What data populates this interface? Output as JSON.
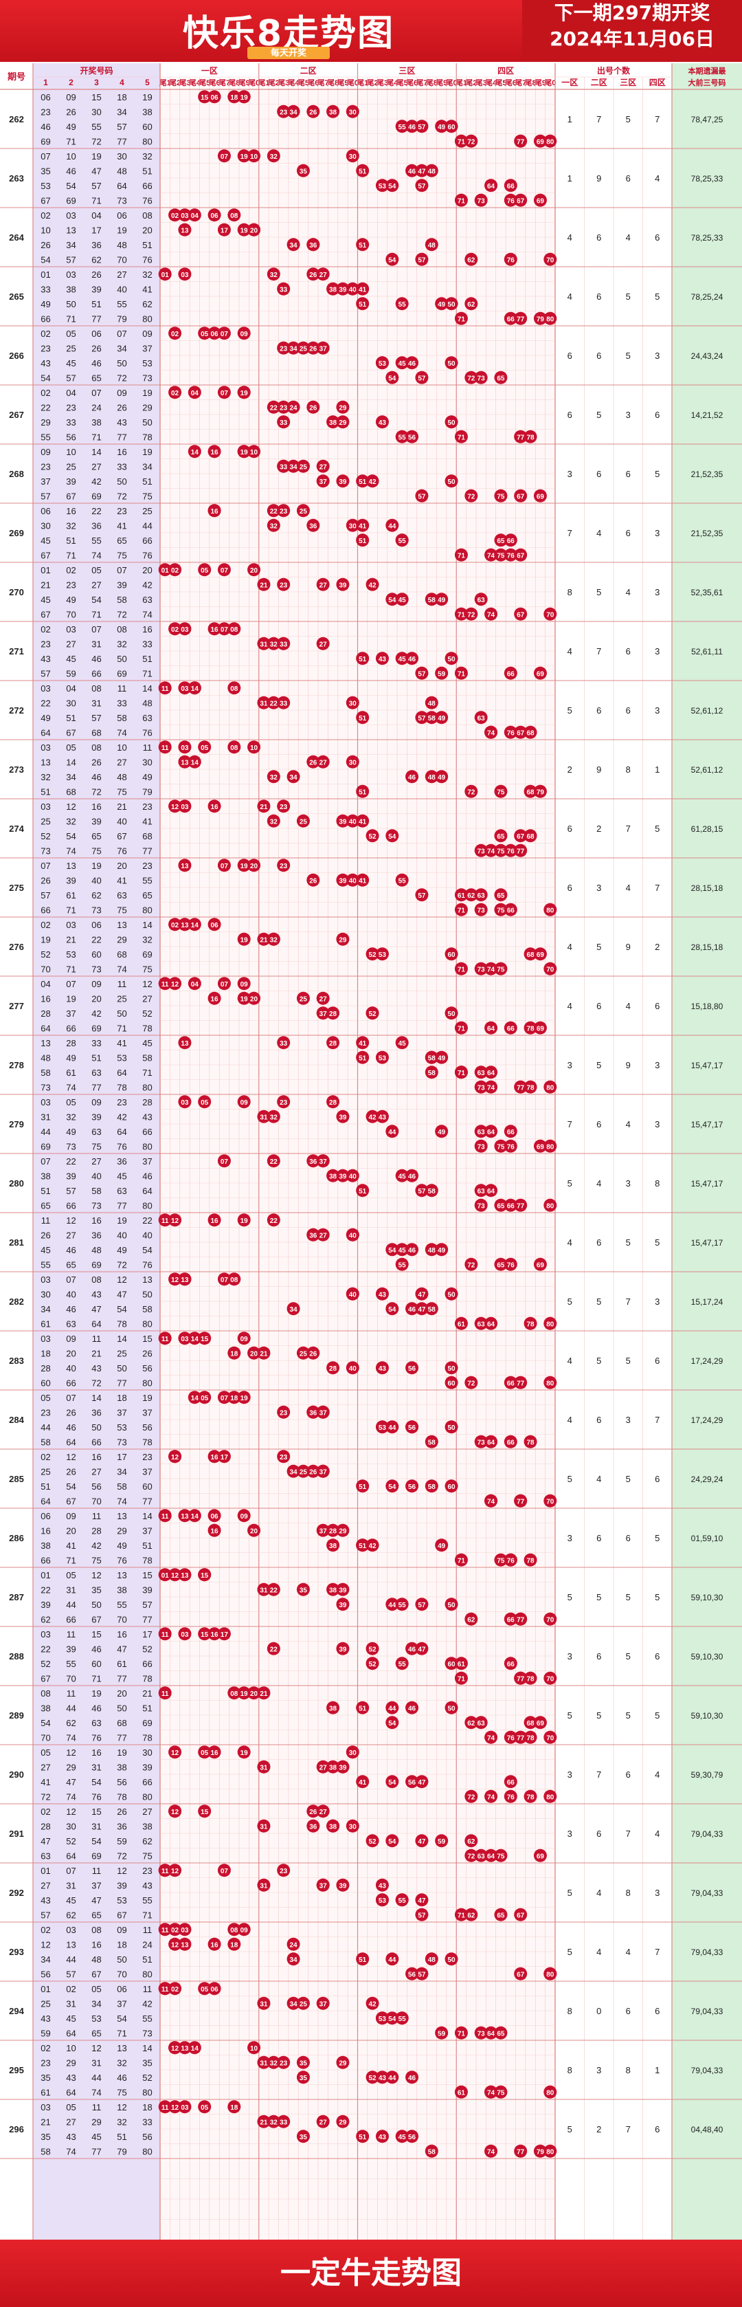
{
  "header": {
    "title": "快乐8走势图",
    "subtitle": "每天开奖",
    "next_issue": "下一期297期开奖",
    "date": "2024年11月06日"
  },
  "footer": {
    "text": "一定牛走势图"
  },
  "table_headers": {
    "issue": "期号",
    "numbers": "开奖号码",
    "number_cols": [
      "1",
      "2",
      "3",
      "4",
      "5"
    ],
    "zones": [
      "一区",
      "二区",
      "三区",
      "四区"
    ],
    "tail_labels": [
      "尾1",
      "尾2",
      "尾3",
      "尾4",
      "尾5",
      "尾6",
      "尾7",
      "尾8",
      "尾9",
      "尾0"
    ],
    "count_title": "出号个数",
    "count_zones": [
      "一区",
      "二区",
      "三区",
      "四区"
    ],
    "gap_title": [
      "本期遗漏最",
      "大前三号码"
    ]
  },
  "colors": {
    "header_red": "#d5161f",
    "ball_red": "#c8102e",
    "number_bg": "#e8e0f7",
    "gap_bg": "#d6f0da",
    "grid": "#f3c7c7"
  },
  "chart_data": {
    "type": "table",
    "rows": [
      {
        "issue": "262",
        "nums": [
          6,
          9,
          15,
          18,
          19,
          23,
          26,
          30,
          34,
          38,
          46,
          49,
          55,
          57,
          60,
          69,
          71,
          72,
          77,
          80
        ],
        "counts": [
          1,
          7,
          5,
          7
        ],
        "gap": "78,47,25"
      },
      {
        "issue": "263",
        "nums": [
          7,
          10,
          19,
          30,
          32,
          35,
          46,
          47,
          48,
          51,
          53,
          54,
          57,
          64,
          66,
          67,
          69,
          71,
          73,
          76
        ],
        "counts": [
          1,
          9,
          6,
          4
        ],
        "gap": "78,25,33"
      },
      {
        "issue": "264",
        "nums": [
          2,
          3,
          4,
          6,
          8,
          10,
          13,
          17,
          19,
          20,
          26,
          34,
          36,
          48,
          51,
          54,
          57,
          62,
          70,
          76
        ],
        "counts": [
          4,
          6,
          4,
          6
        ],
        "gap": "78,25,33"
      },
      {
        "issue": "265",
        "nums": [
          1,
          3,
          26,
          27,
          32,
          33,
          38,
          39,
          40,
          41,
          49,
          50,
          51,
          55,
          62,
          66,
          71,
          77,
          79,
          80
        ],
        "counts": [
          4,
          6,
          5,
          5
        ],
        "gap": "78,25,24"
      },
      {
        "issue": "266",
        "nums": [
          2,
          5,
          6,
          7,
          9,
          23,
          25,
          26,
          34,
          37,
          43,
          45,
          46,
          50,
          53,
          54,
          57,
          65,
          72,
          73
        ],
        "counts": [
          6,
          6,
          5,
          3
        ],
        "gap": "24,43,24"
      },
      {
        "issue": "267",
        "nums": [
          2,
          4,
          7,
          9,
          19,
          22,
          23,
          24,
          26,
          29,
          29,
          33,
          38,
          43,
          50,
          55,
          56,
          71,
          77,
          78
        ],
        "counts": [
          6,
          5,
          3,
          6
        ],
        "gap": "14,21,52"
      },
      {
        "issue": "268",
        "nums": [
          9,
          10,
          14,
          16,
          19,
          23,
          25,
          27,
          33,
          34,
          37,
          39,
          42,
          50,
          51,
          57,
          67,
          69,
          72,
          75
        ],
        "counts": [
          3,
          6,
          6,
          5
        ],
        "gap": "21,52,35"
      },
      {
        "issue": "269",
        "nums": [
          6,
          16,
          22,
          23,
          25,
          30,
          32,
          36,
          41,
          44,
          45,
          51,
          55,
          65,
          66,
          67,
          71,
          74,
          75,
          76
        ],
        "counts": [
          7,
          4,
          6,
          3
        ],
        "gap": "21,52,35"
      },
      {
        "issue": "270",
        "nums": [
          1,
          2,
          5,
          7,
          20,
          21,
          23,
          27,
          39,
          42,
          45,
          49,
          54,
          58,
          63,
          67,
          70,
          71,
          72,
          74
        ],
        "counts": [
          8,
          5,
          4,
          3
        ],
        "gap": "52,35,61"
      },
      {
        "issue": "271",
        "nums": [
          2,
          3,
          7,
          8,
          16,
          23,
          27,
          31,
          32,
          33,
          43,
          45,
          46,
          50,
          51,
          57,
          59,
          66,
          69,
          71
        ],
        "counts": [
          4,
          7,
          6,
          3
        ],
        "gap": "52,61,11"
      },
      {
        "issue": "272",
        "nums": [
          3,
          4,
          8,
          11,
          14,
          22,
          30,
          31,
          33,
          48,
          49,
          51,
          57,
          58,
          63,
          64,
          67,
          68,
          74,
          76
        ],
        "counts": [
          5,
          6,
          6,
          3
        ],
        "gap": "52,61,12"
      },
      {
        "issue": "273",
        "nums": [
          3,
          5,
          8,
          10,
          11,
          13,
          14,
          26,
          27,
          30,
          32,
          34,
          46,
          48,
          49,
          51,
          68,
          72,
          75,
          79
        ],
        "counts": [
          2,
          9,
          8,
          1
        ],
        "gap": "52,61,12"
      },
      {
        "issue": "274",
        "nums": [
          3,
          12,
          16,
          21,
          23,
          25,
          32,
          39,
          40,
          41,
          52,
          54,
          65,
          67,
          68,
          73,
          74,
          75,
          76,
          77
        ],
        "counts": [
          6,
          2,
          7,
          5
        ],
        "gap": "61,28,15"
      },
      {
        "issue": "275",
        "nums": [
          7,
          13,
          19,
          20,
          23,
          26,
          39,
          40,
          41,
          55,
          57,
          61,
          62,
          63,
          65,
          66,
          71,
          73,
          75,
          80
        ],
        "counts": [
          6,
          3,
          4,
          7
        ],
        "gap": "28,15,18"
      },
      {
        "issue": "276",
        "nums": [
          2,
          3,
          6,
          13,
          14,
          19,
          21,
          22,
          29,
          32,
          52,
          53,
          60,
          68,
          69,
          70,
          71,
          73,
          74,
          75
        ],
        "counts": [
          4,
          5,
          9,
          2
        ],
        "gap": "28,15,18"
      },
      {
        "issue": "277",
        "nums": [
          4,
          7,
          9,
          11,
          12,
          16,
          19,
          20,
          25,
          27,
          28,
          37,
          42,
          50,
          52,
          64,
          66,
          69,
          71,
          78
        ],
        "counts": [
          4,
          6,
          4,
          6
        ],
        "gap": "15,18,80"
      },
      {
        "issue": "278",
        "nums": [
          13,
          28,
          33,
          41,
          45,
          48,
          49,
          51,
          53,
          58,
          58,
          61,
          63,
          64,
          71,
          73,
          74,
          77,
          78,
          80
        ],
        "counts": [
          3,
          5,
          9,
          3
        ],
        "gap": "15,47,17"
      },
      {
        "issue": "279",
        "nums": [
          3,
          5,
          9,
          23,
          28,
          31,
          32,
          39,
          42,
          43,
          44,
          49,
          63,
          64,
          66,
          69,
          73,
          75,
          76,
          80
        ],
        "counts": [
          7,
          6,
          4,
          3
        ],
        "gap": "15,47,17"
      },
      {
        "issue": "280",
        "nums": [
          7,
          22,
          27,
          36,
          37,
          38,
          39,
          40,
          45,
          46,
          51,
          57,
          58,
          63,
          64,
          65,
          66,
          73,
          77,
          80
        ],
        "counts": [
          5,
          4,
          3,
          8
        ],
        "gap": "15,47,17"
      },
      {
        "issue": "281",
        "nums": [
          11,
          12,
          16,
          19,
          22,
          26,
          27,
          36,
          40,
          40,
          45,
          46,
          48,
          49,
          54,
          55,
          65,
          69,
          72,
          76
        ],
        "counts": [
          4,
          6,
          5,
          5
        ],
        "gap": "15,47,17"
      },
      {
        "issue": "282",
        "nums": [
          3,
          7,
          8,
          12,
          13,
          30,
          40,
          43,
          47,
          50,
          34,
          46,
          47,
          54,
          58,
          61,
          63,
          64,
          78,
          80
        ],
        "counts": [
          5,
          5,
          7,
          3
        ],
        "gap": "15,17,24"
      },
      {
        "issue": "283",
        "nums": [
          3,
          9,
          11,
          14,
          15,
          18,
          20,
          21,
          25,
          26,
          28,
          40,
          43,
          50,
          56,
          60,
          66,
          72,
          77,
          80
        ],
        "counts": [
          4,
          5,
          5,
          6
        ],
        "gap": "17,24,29"
      },
      {
        "issue": "284",
        "nums": [
          5,
          7,
          14,
          18,
          19,
          23,
          26,
          36,
          37,
          37,
          44,
          46,
          50,
          53,
          56,
          58,
          64,
          66,
          73,
          78
        ],
        "counts": [
          4,
          6,
          3,
          7
        ],
        "gap": "17,24,29"
      },
      {
        "issue": "285",
        "nums": [
          2,
          12,
          16,
          17,
          23,
          25,
          26,
          27,
          34,
          37,
          51,
          54,
          56,
          58,
          60,
          64,
          67,
          70,
          74,
          77
        ],
        "counts": [
          5,
          4,
          5,
          6
        ],
        "gap": "24,29,24"
      },
      {
        "issue": "286",
        "nums": [
          6,
          9,
          11,
          13,
          14,
          16,
          20,
          28,
          29,
          37,
          38,
          41,
          42,
          49,
          51,
          66,
          71,
          75,
          76,
          78
        ],
        "counts": [
          3,
          6,
          6,
          5
        ],
        "gap": "01,59,10"
      },
      {
        "issue": "287",
        "nums": [
          1,
          5,
          12,
          13,
          15,
          22,
          31,
          35,
          38,
          39,
          39,
          44,
          50,
          55,
          57,
          62,
          66,
          67,
          70,
          77
        ],
        "counts": [
          5,
          5,
          5,
          5
        ],
        "gap": "59,10,30"
      },
      {
        "issue": "288",
        "nums": [
          3,
          11,
          15,
          16,
          17,
          22,
          39,
          46,
          47,
          52,
          52,
          55,
          60,
          61,
          66,
          67,
          70,
          71,
          77,
          78
        ],
        "counts": [
          3,
          6,
          5,
          6
        ],
        "gap": "59,10,30"
      },
      {
        "issue": "289",
        "nums": [
          8,
          11,
          19,
          20,
          21,
          38,
          44,
          46,
          50,
          51,
          54,
          62,
          63,
          68,
          69,
          70,
          74,
          76,
          77,
          78
        ],
        "counts": [
          5,
          5,
          5,
          5
        ],
        "gap": "59,10,30"
      },
      {
        "issue": "290",
        "nums": [
          5,
          12,
          16,
          19,
          30,
          27,
          29,
          31,
          38,
          39,
          41,
          47,
          54,
          56,
          66,
          72,
          74,
          76,
          78,
          80
        ],
        "counts": [
          3,
          7,
          6,
          4
        ],
        "gap": "59,30,79"
      },
      {
        "issue": "291",
        "nums": [
          2,
          12,
          15,
          26,
          27,
          28,
          30,
          31,
          36,
          38,
          47,
          52,
          54,
          59,
          62,
          63,
          64,
          69,
          72,
          75
        ],
        "counts": [
          3,
          6,
          7,
          4
        ],
        "gap": "79,04,33"
      },
      {
        "issue": "292",
        "nums": [
          1,
          7,
          11,
          12,
          23,
          27,
          31,
          37,
          39,
          43,
          43,
          45,
          47,
          53,
          55,
          57,
          62,
          65,
          67,
          71
        ],
        "counts": [
          5,
          4,
          8,
          3
        ],
        "gap": "79,04,33"
      },
      {
        "issue": "293",
        "nums": [
          2,
          3,
          8,
          9,
          11,
          12,
          13,
          16,
          18,
          24,
          34,
          44,
          48,
          50,
          51,
          56,
          57,
          67,
          70,
          80
        ],
        "counts": [
          5,
          4,
          4,
          7
        ],
        "gap": "79,04,33"
      },
      {
        "issue": "294",
        "nums": [
          1,
          2,
          5,
          6,
          11,
          25,
          31,
          34,
          37,
          42,
          43,
          45,
          53,
          54,
          55,
          59,
          64,
          65,
          71,
          73
        ],
        "counts": [
          8,
          0,
          6,
          6
        ],
        "gap": "79,04,33"
      },
      {
        "issue": "295",
        "nums": [
          2,
          10,
          12,
          13,
          14,
          23,
          29,
          31,
          32,
          35,
          35,
          43,
          44,
          46,
          52,
          61,
          64,
          74,
          75,
          80
        ],
        "counts": [
          8,
          3,
          8,
          1
        ],
        "gap": "79,04,33"
      },
      {
        "issue": "296",
        "nums": [
          3,
          5,
          11,
          12,
          18,
          21,
          27,
          29,
          32,
          33,
          35,
          43,
          45,
          51,
          56,
          58,
          74,
          77,
          79,
          80
        ],
        "counts": [
          5,
          2,
          7,
          6
        ],
        "gap": "04,48,40"
      }
    ]
  }
}
